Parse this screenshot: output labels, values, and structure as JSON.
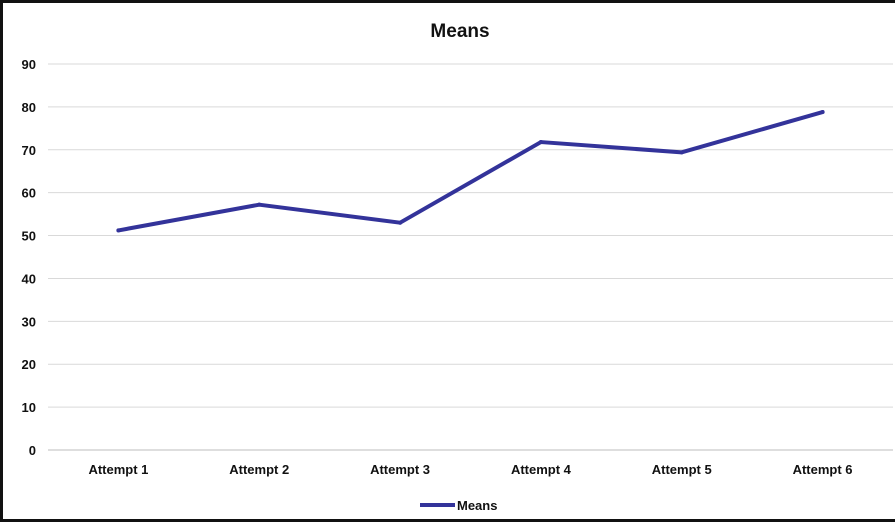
{
  "chart_data": {
    "type": "line",
    "title": "Means",
    "xlabel": "",
    "ylabel": "",
    "categories": [
      "Attempt 1",
      "Attempt 2",
      "Attempt 3",
      "Attempt 4",
      "Attempt 5",
      "Attempt 6"
    ],
    "series": [
      {
        "name": "Means",
        "color": "#33339a",
        "values": [
          51.2,
          57.2,
          53,
          71.8,
          69.4,
          78.8
        ]
      }
    ],
    "ylim": [
      0,
      90
    ],
    "yticks": [
      0,
      10,
      20,
      30,
      40,
      50,
      60,
      70,
      80,
      90
    ],
    "grid": true,
    "legend_position": "bottom"
  }
}
